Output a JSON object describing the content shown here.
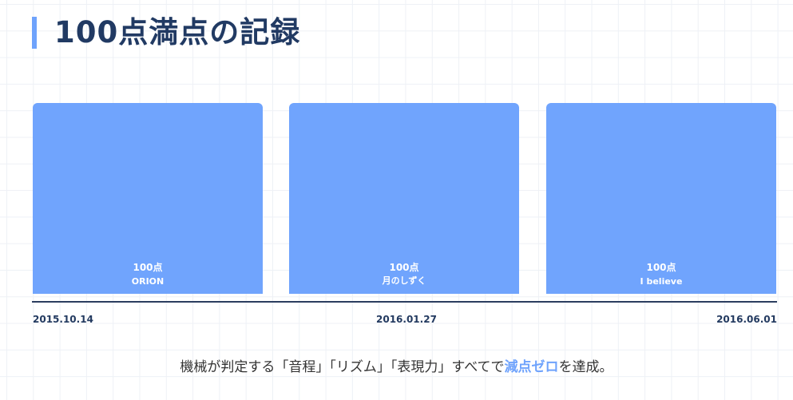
{
  "title": "100点満点の記録",
  "chart_data": {
    "type": "bar",
    "categories": [
      "ORION",
      "月のしずく",
      "I believe"
    ],
    "values": [
      100,
      100,
      100
    ],
    "value_labels": [
      "100点",
      "100点",
      "100点"
    ],
    "x_ticks": [
      "2015.10.14",
      "2016.01.27",
      "2016.06.01"
    ],
    "bar_color": "#70a4fd",
    "grid": true
  },
  "caption": {
    "before": "機械が判定する「音程」「リズム」「表現力」すべてで",
    "highlight": "減点ゼロ",
    "after": "を達成。",
    "highlight_color": "#6fa3fc"
  }
}
